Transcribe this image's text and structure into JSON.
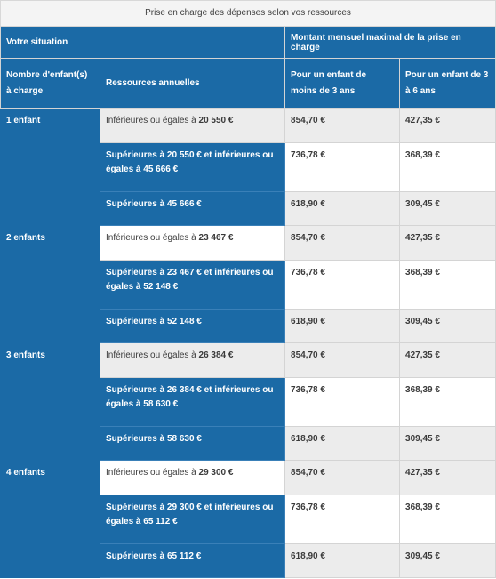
{
  "caption": "Prise en charge des dépenses selon vos ressources",
  "header": {
    "situation": "Votre situation",
    "montant": "Montant mensuel maximal de la prise en charge",
    "nb_enfants": "Nombre d'enfant(s) à charge",
    "ressources": "Ressources annuelles",
    "moins_3": "Pour un enfant de moins de 3 ans",
    "de_3_6": "Pour un enfant de 3 à 6 ans"
  },
  "groups": [
    {
      "label": "1 enfant",
      "rows": [
        {
          "res_lead": "Inférieures ou égales à",
          "res_value": "20 550 €",
          "v1": "854,70 €",
          "v2": "427,35 €"
        },
        {
          "res_lead": "Supérieures à 20 550 € et inférieures ou égales à",
          "res_value": "45 666 €",
          "v1": "736,78 €",
          "v2": "368,39 €"
        },
        {
          "res_lead": "Supérieures à",
          "res_value": "45 666 €",
          "v1": "618,90 €",
          "v2": "309,45 €"
        }
      ]
    },
    {
      "label": "2 enfants",
      "rows": [
        {
          "res_lead": "Inférieures ou égales à",
          "res_value": "23 467 €",
          "v1": "854,70 €",
          "v2": "427,35 €"
        },
        {
          "res_lead": "Supérieures à 23 467 € et inférieures ou égales à",
          "res_value": "52 148 €",
          "v1": "736,78 €",
          "v2": "368,39 €"
        },
        {
          "res_lead": "Supérieures à",
          "res_value": "52 148 €",
          "v1": "618,90 €",
          "v2": "309,45 €"
        }
      ]
    },
    {
      "label": "3 enfants",
      "rows": [
        {
          "res_lead": "Inférieures ou égales à",
          "res_value": "26 384 €",
          "v1": "854,70 €",
          "v2": "427,35 €"
        },
        {
          "res_lead": "Supérieures à 26 384 € et inférieures ou égales à",
          "res_value": "58 630 €",
          "v1": "736,78 €",
          "v2": "368,39 €"
        },
        {
          "res_lead": "Supérieures à",
          "res_value": "58 630 €",
          "v1": "618,90 €",
          "v2": "309,45 €"
        }
      ]
    },
    {
      "label": "4 enfants",
      "rows": [
        {
          "res_lead": "Inférieures ou égales à",
          "res_value": "29 300 €",
          "v1": "854,70 €",
          "v2": "427,35 €"
        },
        {
          "res_lead": "Supérieures à 29 300 € et inférieures ou égales à",
          "res_value": "65 112 €",
          "v1": "736,78 €",
          "v2": "368,39 €"
        },
        {
          "res_lead": "Supérieures à",
          "res_value": "65 112 €",
          "v1": "618,90 €",
          "v2": "309,45 €"
        }
      ]
    }
  ]
}
